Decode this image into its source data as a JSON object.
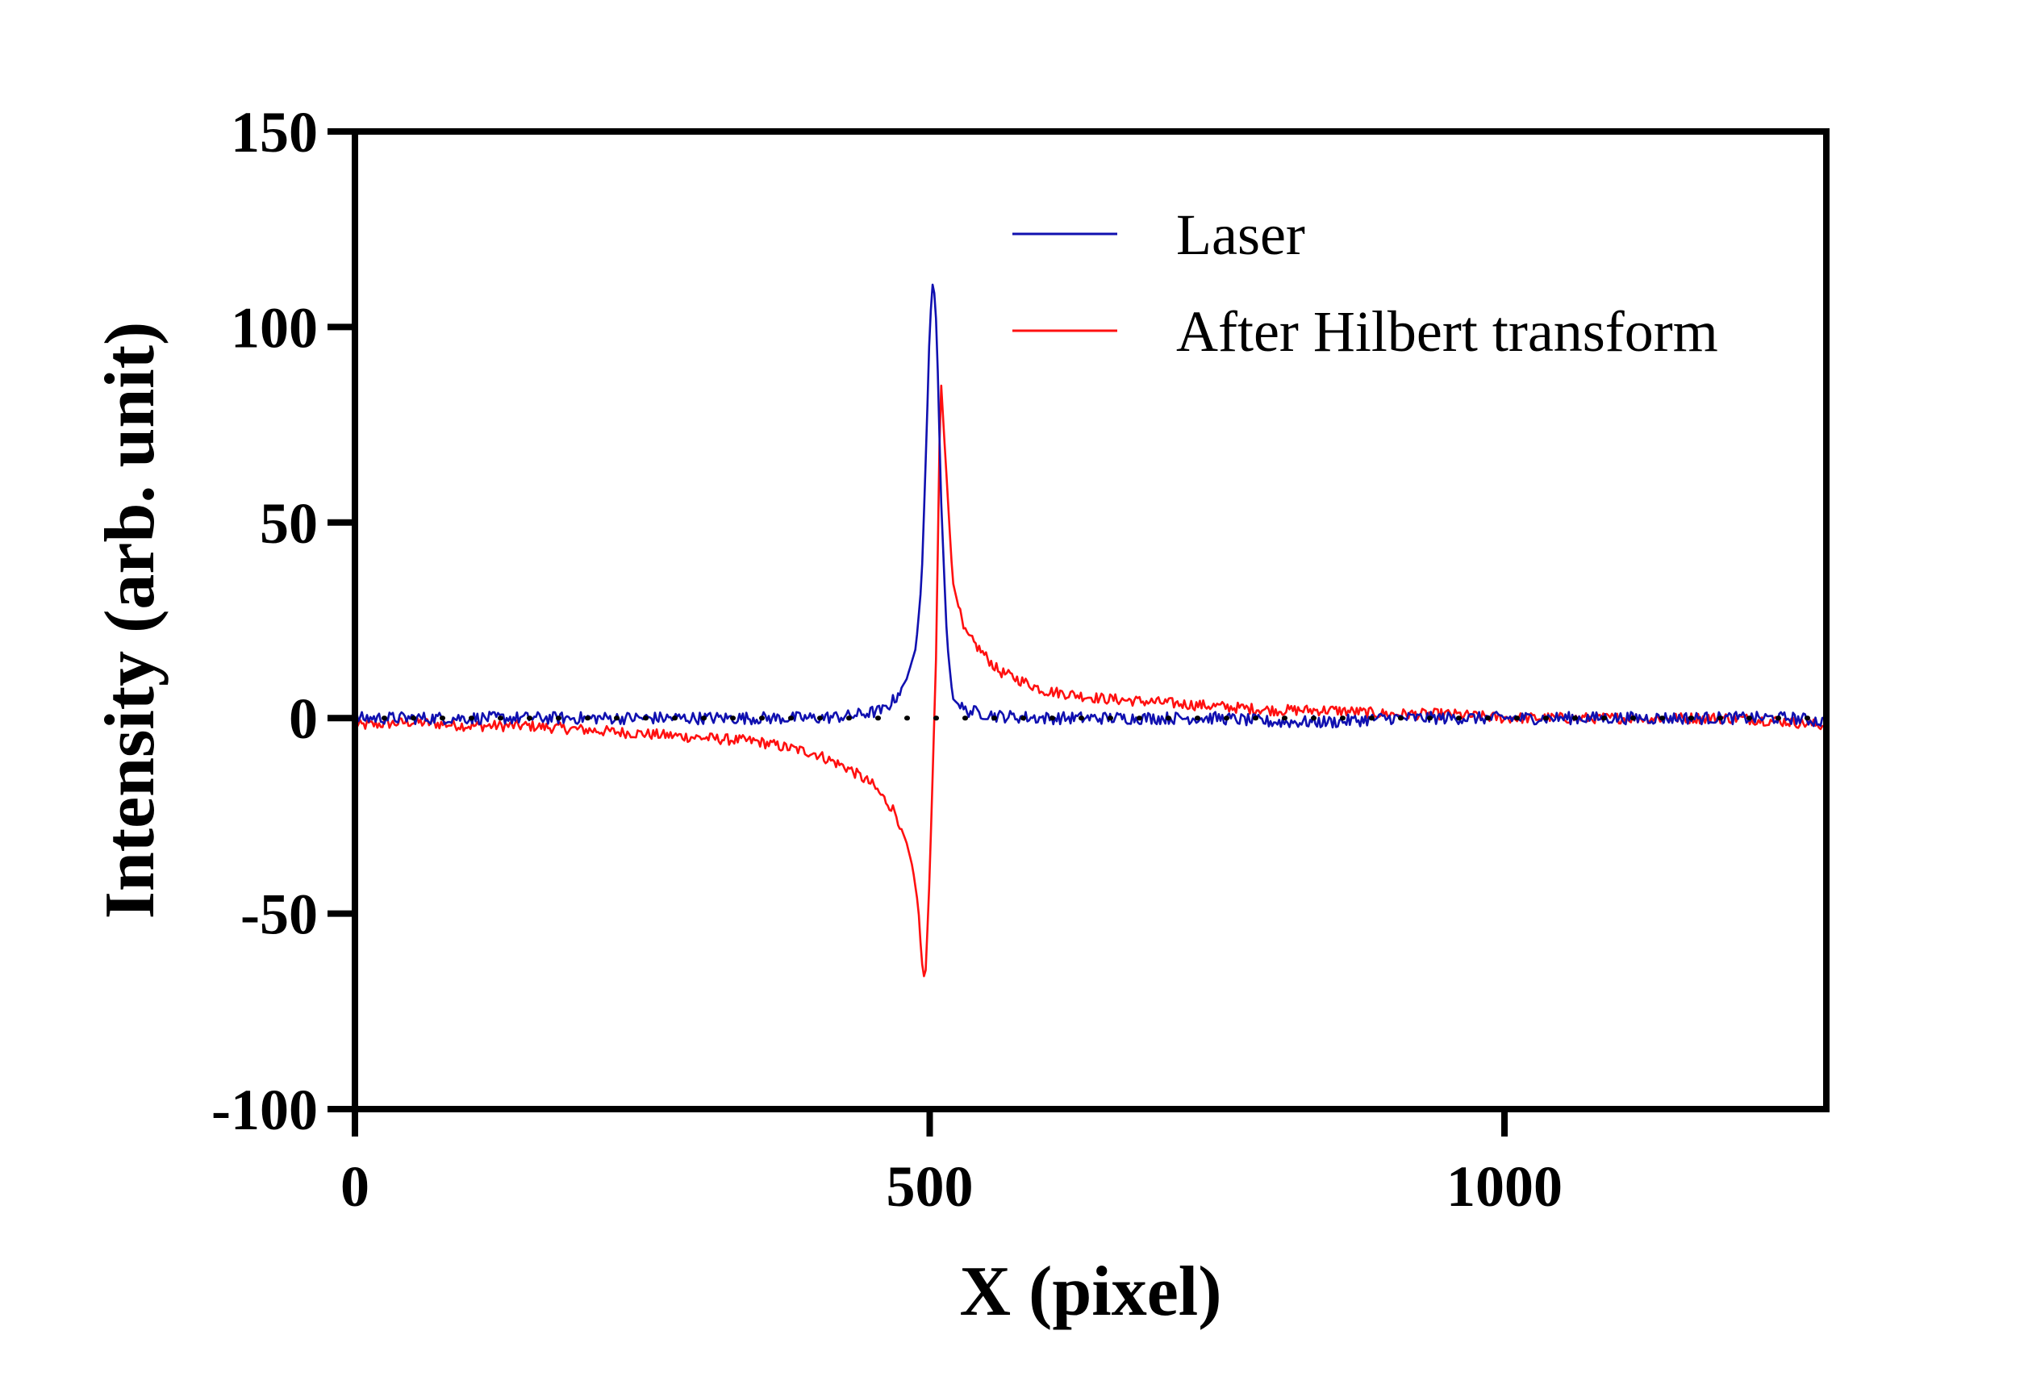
{
  "chart_data": {
    "type": "line",
    "title": "",
    "xlabel": "X (pixel)",
    "ylabel": "Intensity (arb. unit)",
    "xlim": [
      0,
      1280
    ],
    "ylim": [
      -100,
      150
    ],
    "xticks": [
      0,
      500,
      1000
    ],
    "yticks": [
      -100,
      -50,
      0,
      50,
      100,
      150
    ],
    "xtick_labels": [
      "0",
      "500",
      "1000"
    ],
    "ytick_labels": [
      "-100",
      "-50",
      "0",
      "50",
      "100",
      "150"
    ],
    "grid": false,
    "legend_position": "top-right",
    "baseline": {
      "y": 0,
      "style": "dotted",
      "color": "#000000"
    },
    "series": [
      {
        "name": "Laser",
        "color": "#1010b0",
        "x": [
          0,
          50,
          100,
          150,
          200,
          250,
          300,
          350,
          400,
          430,
          460,
          470,
          480,
          488,
          493,
          497,
          500,
          503,
          506,
          510,
          515,
          520,
          530,
          560,
          600,
          650,
          700,
          750,
          800,
          850,
          900,
          950,
          1000,
          1050,
          1100,
          1150,
          1200,
          1250,
          1280
        ],
        "y": [
          0,
          0,
          0,
          0,
          0,
          0,
          0,
          0,
          0,
          0.5,
          2,
          5,
          10,
          18,
          35,
          70,
          100,
          113,
          100,
          55,
          20,
          5,
          2,
          0.5,
          0,
          0,
          0,
          0,
          -1,
          -1,
          0,
          0,
          0,
          0,
          0,
          0,
          0,
          0,
          -1
        ]
      },
      {
        "name": "After Hilbert transform",
        "color": "#ff1010",
        "x": [
          0,
          50,
          100,
          150,
          200,
          250,
          300,
          350,
          400,
          430,
          450,
          470,
          480,
          485,
          490,
          493,
          496,
          500,
          503,
          506,
          508,
          510,
          515,
          520,
          530,
          560,
          600,
          650,
          700,
          750,
          800,
          850,
          900,
          950,
          1000,
          1050,
          1100,
          1150,
          1200,
          1250,
          1280
        ],
        "y": [
          -2,
          -1,
          -2,
          -2,
          -3,
          -4,
          -5,
          -6,
          -9,
          -13,
          -17,
          -24,
          -32,
          -38,
          -48,
          -62,
          -68,
          -40,
          -10,
          20,
          65,
          85,
          60,
          35,
          22,
          12,
          7,
          5,
          4,
          3,
          2,
          2,
          1,
          1,
          0,
          0,
          0,
          0,
          0,
          -1,
          -2
        ]
      }
    ]
  }
}
